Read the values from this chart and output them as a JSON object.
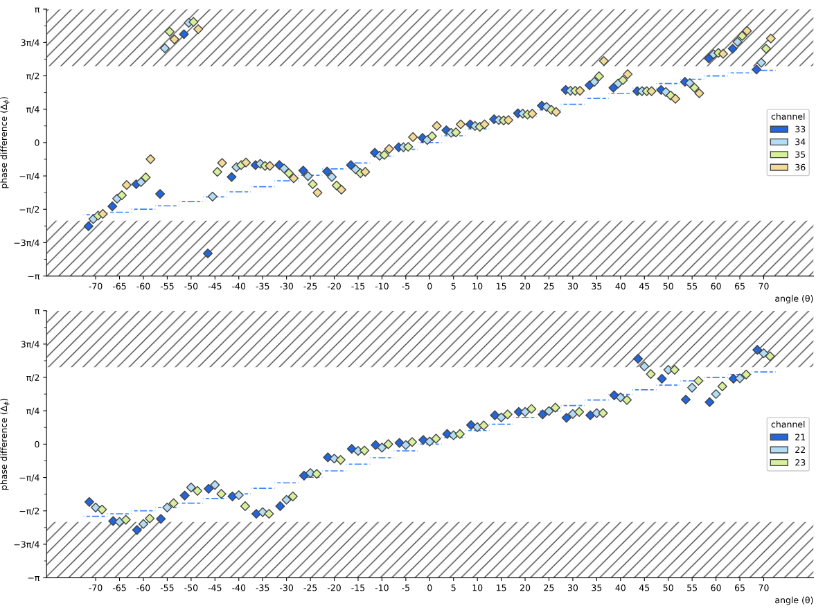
{
  "chart_data": [
    {
      "type": "scatter",
      "xlabel": "angle (θ)",
      "ylabel": "phase difference (Δ$_{ϕ}$)",
      "legend_title": "channel",
      "legend": "right",
      "marker": "diamond",
      "grid": false,
      "categories": [
        "-70",
        "-65",
        "-60",
        "-55",
        "-50",
        "-45",
        "-40",
        "-35",
        "-30",
        "-25",
        "-20",
        "-15",
        "-10",
        "-5",
        "0",
        "5",
        "10",
        "15",
        "20",
        "25",
        "30",
        "35",
        "40",
        "45",
        "50",
        "55",
        "60",
        "65",
        "70"
      ],
      "ylim": [
        -3.1416,
        3.1416
      ],
      "yticks": [
        {
          "value": -3.1416,
          "label": "−π"
        },
        {
          "value": -2.3562,
          "label": "−3π/4"
        },
        {
          "value": -1.5708,
          "label": "−π/2"
        },
        {
          "value": -0.7854,
          "label": "−π/4"
        },
        {
          "value": 0,
          "label": "0"
        },
        {
          "value": 0.7854,
          "label": "π/4"
        },
        {
          "value": 1.5708,
          "label": "π/2"
        },
        {
          "value": 2.3562,
          "label": "3π/4"
        },
        {
          "value": 3.1416,
          "label": "π"
        }
      ],
      "bands": [
        {
          "axis": "y",
          "from": 1.8,
          "to": 3.1416,
          "label": null
        },
        {
          "axis": "y",
          "from": -3.1416,
          "to": -1.84,
          "label": null
        }
      ],
      "series": [
        {
          "name": "33",
          "color": "#2166de",
          "values": [
            -1.97,
            -1.5,
            -0.98,
            -1.21,
            2.55,
            -2.61,
            -0.81,
            -0.53,
            -0.53,
            -0.66,
            -0.68,
            -0.53,
            -0.24,
            -0.11,
            0.11,
            0.29,
            0.43,
            0.55,
            0.69,
            0.87,
            1.24,
            1.35,
            1.29,
            1.21,
            1.24,
            1.43,
            1.98,
            2.21,
            1.72
          ]
        },
        {
          "name": "34",
          "color": "#b3dcf5",
          "values": [
            -1.8,
            -1.32,
            -0.93,
            2.22,
            2.82,
            -1.27,
            -0.58,
            -0.5,
            -0.61,
            -0.79,
            -0.81,
            -0.63,
            -0.31,
            -0.11,
            0.06,
            0.23,
            0.39,
            0.53,
            0.68,
            0.84,
            1.22,
            1.43,
            1.39,
            1.21,
            1.19,
            1.4,
            2.08,
            2.37,
            1.88
          ]
        },
        {
          "name": "35",
          "color": "#d8f09c",
          "values": [
            -1.72,
            -1.24,
            -0.82,
            2.61,
            2.84,
            -0.69,
            -0.53,
            -0.55,
            -0.72,
            -0.98,
            -1.01,
            -0.72,
            -0.29,
            -0.1,
            0.15,
            0.24,
            0.37,
            0.52,
            0.66,
            0.77,
            1.22,
            1.56,
            1.47,
            1.21,
            1.11,
            1.29,
            2.11,
            2.51,
            2.21
          ]
        },
        {
          "name": "36",
          "color": "#f2da98",
          "values": [
            -1.68,
            -1.0,
            -0.39,
            2.43,
            2.67,
            -0.48,
            -0.47,
            -0.55,
            -0.84,
            -1.18,
            -1.11,
            -0.69,
            -0.15,
            0.13,
            0.39,
            0.43,
            0.43,
            0.53,
            0.68,
            0.72,
            1.22,
            1.92,
            1.61,
            1.21,
            1.03,
            1.16,
            2.09,
            2.63,
            2.45
          ]
        },
        {
          "type": "step",
          "line_style": "dashed",
          "marker": "none",
          "color": "#3a86ff",
          "values": [
            -1.7,
            -1.64,
            -1.57,
            -1.49,
            -1.39,
            -1.28,
            -1.16,
            -1.04,
            -0.9,
            -0.77,
            -0.62,
            -0.48,
            -0.32,
            -0.16,
            0,
            0.16,
            0.32,
            0.48,
            0.62,
            0.77,
            0.9,
            1.04,
            1.16,
            1.28,
            1.39,
            1.49,
            1.57,
            1.64,
            1.7
          ]
        }
      ]
    },
    {
      "type": "scatter",
      "xlabel": "angle (θ)",
      "ylabel": "phase difference (Δ$_{ϕ}$)",
      "legend_title": "channel",
      "legend": "right",
      "marker": "diamond",
      "grid": false,
      "categories": [
        "-70",
        "-65",
        "-60",
        "-55",
        "-50",
        "-45",
        "-40",
        "-35",
        "-30",
        "-25",
        "-20",
        "-15",
        "-10",
        "-5",
        "0",
        "5",
        "10",
        "15",
        "20",
        "25",
        "30",
        "35",
        "40",
        "45",
        "50",
        "55",
        "60",
        "65",
        "70"
      ],
      "ylim": [
        -3.1416,
        3.1416
      ],
      "yticks": [
        {
          "value": -3.1416,
          "label": "−π"
        },
        {
          "value": -2.3562,
          "label": "−3π/4"
        },
        {
          "value": -1.5708,
          "label": "−π/2"
        },
        {
          "value": -0.7854,
          "label": "−π/4"
        },
        {
          "value": 0,
          "label": "0"
        },
        {
          "value": 0.7854,
          "label": "π/4"
        },
        {
          "value": 1.5708,
          "label": "π/2"
        },
        {
          "value": 2.3562,
          "label": "3π/4"
        },
        {
          "value": 3.1416,
          "label": "π"
        }
      ],
      "bands": [
        {
          "axis": "y",
          "from": 1.81,
          "to": 3.1416,
          "label": null
        },
        {
          "axis": "y",
          "from": -3.1416,
          "to": -1.83,
          "label": null
        }
      ],
      "series": [
        {
          "name": "21",
          "color": "#2166de",
          "values": [
            -1.36,
            -1.81,
            -2.02,
            -1.76,
            -1.21,
            -1.05,
            -1.23,
            -1.64,
            -1.46,
            -0.74,
            -0.31,
            -0.11,
            -0.02,
            0.03,
            0.1,
            0.24,
            0.45,
            0.68,
            0.76,
            0.7,
            0.62,
            0.68,
            1.15,
            2.01,
            1.54,
            1.05,
            0.99,
            1.54,
            2.22
          ]
        },
        {
          "name": "22",
          "color": "#b3dcf5",
          "values": [
            -1.49,
            -1.83,
            -1.88,
            -1.49,
            -1.02,
            -0.96,
            -1.2,
            -1.6,
            -1.31,
            -0.68,
            -0.34,
            -0.16,
            -0.08,
            -0.02,
            0.06,
            0.21,
            0.4,
            0.63,
            0.76,
            0.78,
            0.71,
            0.73,
            1.1,
            1.83,
            1.75,
            1.33,
            1.18,
            1.55,
            2.14
          ]
        },
        {
          "name": "23",
          "color": "#d8f09c",
          "values": [
            -1.54,
            -1.78,
            -1.75,
            -1.39,
            -1.1,
            -1.17,
            -1.46,
            -1.64,
            -1.23,
            -0.7,
            -0.37,
            -0.15,
            0.0,
            0.05,
            0.13,
            0.24,
            0.44,
            0.7,
            0.83,
            0.86,
            0.76,
            0.73,
            1.04,
            1.65,
            1.75,
            1.49,
            1.36,
            1.64,
            2.07
          ]
        },
        {
          "type": "step",
          "line_style": "dashed",
          "marker": "none",
          "color": "#3a86ff",
          "values": [
            -1.7,
            -1.64,
            -1.57,
            -1.49,
            -1.39,
            -1.28,
            -1.17,
            -1.04,
            -0.91,
            -0.78,
            -0.63,
            -0.47,
            -0.32,
            -0.16,
            0,
            0.16,
            0.32,
            0.47,
            0.63,
            0.78,
            0.91,
            1.04,
            1.17,
            1.28,
            1.39,
            1.49,
            1.57,
            1.64,
            1.7
          ]
        }
      ]
    }
  ]
}
